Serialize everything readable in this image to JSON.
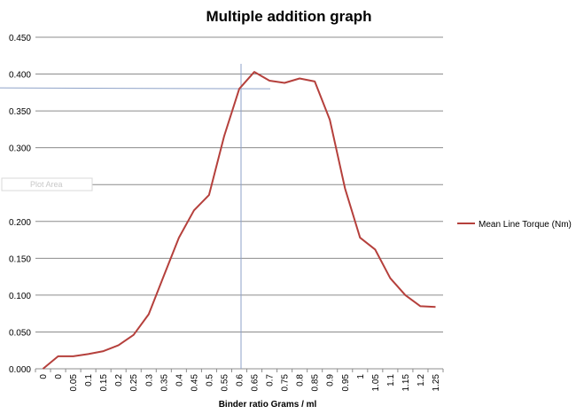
{
  "chart_data": {
    "type": "line",
    "title": "Multiple addition graph",
    "xlabel": "Binder ratio Grams / ml",
    "ylabel": "",
    "ylim": [
      0,
      0.45
    ],
    "yticks": [
      "0.000",
      "0.050",
      "0.100",
      "0.150",
      "0.200",
      "0.250",
      "0.300",
      "0.350",
      "0.400",
      "0.450"
    ],
    "categories": [
      "0",
      "0",
      "0.05",
      "0.1",
      "0.15",
      "0.2",
      "0.25",
      "0.3",
      "0.35",
      "0.4",
      "0.45",
      "0.5",
      "0.55",
      "0.6",
      "0.65",
      "0.7",
      "0.75",
      "0.8",
      "0.85",
      "0.9",
      "0.95",
      "1",
      "1.05",
      "1.1",
      "1.15",
      "1.2",
      "1.25"
    ],
    "series": [
      {
        "name": "Mean Line Torque (Nm)",
        "color": "#b5403c",
        "values": [
          0.0,
          0.017,
          0.017,
          0.02,
          0.024,
          0.032,
          0.046,
          0.074,
          0.126,
          0.178,
          0.215,
          0.236,
          0.316,
          0.38,
          0.403,
          0.391,
          0.388,
          0.394,
          0.39,
          0.338,
          0.245,
          0.178,
          0.162,
          0.123,
          0.1,
          0.085,
          0.084
        ]
      }
    ],
    "grid": true,
    "legend": "right",
    "reference_lines": {
      "x_category": "0.6",
      "y_value": 0.38
    },
    "ghost_label": "Plot Area"
  }
}
